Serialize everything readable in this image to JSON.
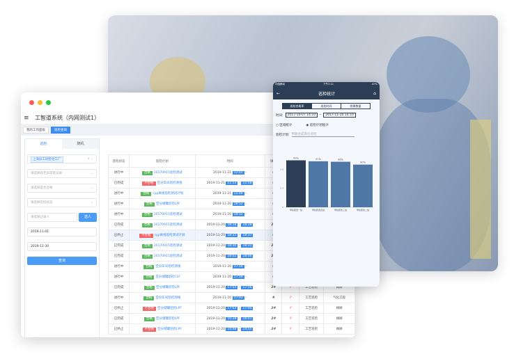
{
  "app": {
    "title": "工智道系统（内网测试1）",
    "tabs": [
      "我的工作面板",
      "巡检查询"
    ]
  },
  "filters": {
    "tabs": [
      "巡检",
      "随机"
    ],
    "plant_chip": "上海异工同智化工厂",
    "placeholders": [
      "请选择有无异常巡记录",
      "请选择是否合格",
      "请选择巡检状态",
      "请选择记录人"
    ],
    "choose_btn": "选人",
    "date_from": "2019-11-01",
    "date_to": "2019-11-30",
    "query_btn": "查询"
  },
  "table": {
    "headers": [
      "巡检状态",
      "巡检计划",
      "时间",
      "填写",
      "",
      "",
      ""
    ],
    "rows": [
      [
        "进行中",
        "合格",
        "20170915巡检测试",
        "2019-11-21",
        "12:03",
        "",
        "#",
        "",
        "",
        ""
      ],
      [
        "已完成",
        "不合格",
        "空分车间巡检测线",
        "2019-11-21",
        "11:53",
        "11:58",
        "#",
        "",
        "",
        ""
      ],
      [
        "进行中",
        "合格",
        "cyp离线巡检测试计划",
        "2019-11-21",
        "11:49",
        "",
        "#",
        "",
        "",
        ""
      ],
      [
        "进行中",
        "合格",
        "空分储罐巡检LPF",
        "2019-11-20",
        "18:52",
        "",
        "#",
        "",
        "",
        ""
      ],
      [
        "进行中",
        "合格",
        "20170915巡检测试",
        "2019-11-20",
        "18:52",
        "",
        "#",
        "",
        "",
        ""
      ],
      [
        "已完成",
        "合格",
        "20170915巡检测试",
        "2019-11-20",
        "18:18",
        "18:39",
        "2#",
        "",
        "",
        ""
      ],
      [
        "已终止",
        "不合格",
        "cyp离线巡检测试计划",
        "2019-11-20",
        "18:35",
        "18:37",
        "#",
        "",
        "",
        ""
      ],
      [
        "已完成",
        "合格",
        "20170915巡检测试",
        "2019-11-20",
        "18:30",
        "18:31",
        "2#",
        "",
        "",
        ""
      ],
      [
        "已完成",
        "合格",
        "20170915巡检测试",
        "2019-11-20",
        "18:02",
        "18:04",
        "2#",
        "",
        "",
        ""
      ],
      [
        "进行中",
        "合格",
        "空分车间巡检测线",
        "2019-11-20",
        "17:59",
        "",
        "#",
        "",
        "",
        ""
      ],
      [
        "进行中",
        "合格",
        "空分储罐巡检CSY",
        "2019-11-20",
        "17:59",
        "",
        "#",
        "",
        "",
        ""
      ],
      [
        "已完成",
        "合格",
        "空分储罐巡检LPF",
        "2019-11-20",
        "17:55",
        "17:56",
        "2#",
        "P",
        "工艺巡检",
        "阀阀"
      ],
      [
        "进行中",
        "合格",
        "空分车间巡检测线",
        "2019-11-20",
        "17:03",
        "",
        "#",
        "P",
        "工艺巡检",
        "气化工段"
      ],
      [
        "已终止",
        "不合格",
        "空分储罐巡检LPF",
        "2019-11-20",
        "17:03",
        "17:04",
        "2#",
        "P",
        "工艺巡检",
        "阀阀"
      ],
      [
        "已完成",
        "合格",
        "空分储罐巡检LPF",
        "2019-11-20",
        "16:38",
        "16:41",
        "2#",
        "P",
        "工艺巡检",
        "阀阀"
      ],
      [
        "已终止",
        "不合格",
        "空分储罐巡检LPF",
        "2019-11-20",
        "14:48",
        "14:55",
        "2#",
        "P",
        "工艺巡检",
        "阀阀"
      ]
    ]
  },
  "phone": {
    "carrier": "中国移动",
    "clock": "下午2:11",
    "battery": "67%",
    "title": "巡检统计",
    "segments": [
      "巡检合格率",
      "巡检时间",
      "隐患数量"
    ],
    "time_label": "时间:",
    "date_from": "2017-10-07 14:10",
    "date_to": "2017-11-10 14:10",
    "radio1": "区域统计",
    "radio2": "巡检计划统计",
    "plan_label": "巡检计划:",
    "plan_placeholder": "甲醇合成岗位巡检"
  },
  "chart_data": {
    "type": "bar",
    "categories": [
      "甲醇装置一班",
      "甲醇装置四班",
      "甲醇装置三班",
      "甲醇装置二班"
    ],
    "values": [
      0.99,
      0.97,
      0.96,
      0.9
    ],
    "data_labels": [
      "99%",
      "97%",
      "96%",
      "90%"
    ],
    "yticks": [
      "0",
      "0.4",
      "0.8"
    ],
    "ylim": [
      0,
      1.1
    ],
    "colors": [
      "#2c3e55",
      "#4f77a6",
      "#4f77a6",
      "#4f77a6"
    ]
  },
  "colors": {
    "accent": "#3d8cf0",
    "pass": "#5cb85c",
    "fail": "#f26666",
    "navy": "#2c3e55"
  }
}
